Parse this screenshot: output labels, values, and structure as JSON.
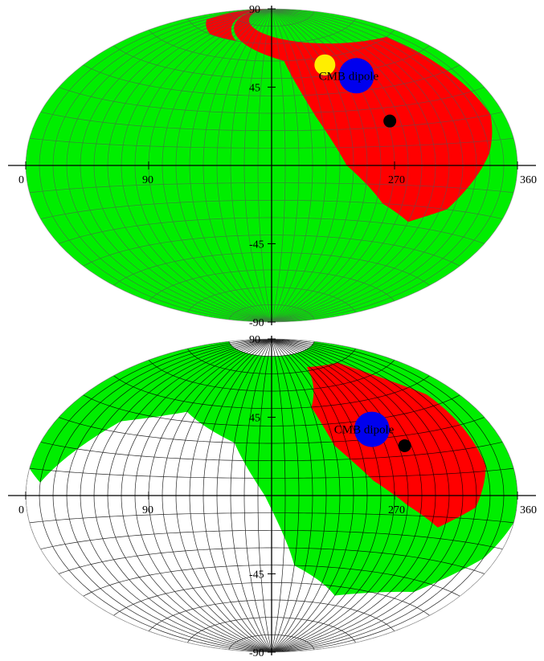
{
  "colors": {
    "red_region": "#ff0000",
    "green_region": "#00ee00",
    "white_region": "#ffffff",
    "grid_on_color": "#555555",
    "grid_on_white": "#000000",
    "marker_yellow": "#ffee00",
    "marker_blue": "#0000ee",
    "marker_black": "#000000"
  },
  "chart_data": [
    {
      "type": "map",
      "projection": "aitoff",
      "xlim": [
        0,
        360
      ],
      "ylim": [
        -90,
        90
      ],
      "grid": true,
      "x_ticks": [
        "0",
        "90",
        "270",
        "360"
      ],
      "y_ticks": [
        "90",
        "45",
        "-45",
        "-90"
      ],
      "annotations": [
        {
          "text": "CMB dipole"
        }
      ],
      "markers": [
        {
          "name": "yellow",
          "color": "yellow",
          "lon": 240,
          "lat": 56
        },
        {
          "name": "blue",
          "color": "blue",
          "lon": 264,
          "lat": 48
        },
        {
          "name": "black",
          "color": "black",
          "lon": 272,
          "lat": 23
        }
      ],
      "regions": [
        {
          "color": "green",
          "covers": "full sky"
        },
        {
          "color": "red",
          "boundary": [
            [
              0,
              90
            ],
            [
              340,
              60
            ],
            [
              350,
              20
            ],
            [
              340,
              5
            ],
            [
              315,
              -20
            ],
            [
              290,
              -28
            ],
            [
              265,
              -20
            ],
            [
              235,
              0
            ],
            [
              215,
              28
            ],
            [
              195,
              60
            ]
          ]
        },
        {
          "color": "red",
          "boundary": [
            [
              0,
              90
            ],
            [
              120,
              70
            ],
            [
              70,
              70
            ],
            [
              20,
              74
            ]
          ]
        }
      ]
    },
    {
      "type": "map",
      "projection": "aitoff",
      "xlim": [
        0,
        360
      ],
      "ylim": [
        -90,
        90
      ],
      "grid": true,
      "x_ticks": [
        "0",
        "90",
        "270",
        "360"
      ],
      "y_ticks": [
        "90",
        "45",
        "-45",
        "-90"
      ],
      "annotations": [
        {
          "text": "CMB dipole"
        }
      ],
      "markers": [
        {
          "name": "blue",
          "color": "blue",
          "lon": 265,
          "lat": 35
        },
        {
          "name": "black",
          "color": "black",
          "lon": 285,
          "lat": 25
        }
      ],
      "regions": [
        {
          "color": "white",
          "covers": "full sky"
        },
        {
          "color": "green",
          "boundary": [
            [
              0,
              10
            ],
            [
              0,
              80
            ],
            [
              360,
              80
            ],
            [
              360,
              -10
            ],
            [
              350,
              -25
            ],
            [
              320,
              -45
            ],
            [
              250,
              -55
            ],
            [
              200,
              -40
            ],
            [
              175,
              0
            ],
            [
              150,
              30
            ],
            [
              100,
              45
            ],
            [
              50,
              35
            ],
            [
              10,
              5
            ]
          ]
        },
        {
          "color": "red",
          "boundary": [
            [
              220,
              50
            ],
            [
              245,
              72
            ],
            [
              300,
              70
            ],
            [
              335,
              45
            ],
            [
              340,
              12
            ],
            [
              330,
              -5
            ],
            [
              305,
              -15
            ],
            [
              280,
              -5
            ],
            [
              255,
              8
            ],
            [
              230,
              28
            ]
          ]
        }
      ]
    }
  ]
}
